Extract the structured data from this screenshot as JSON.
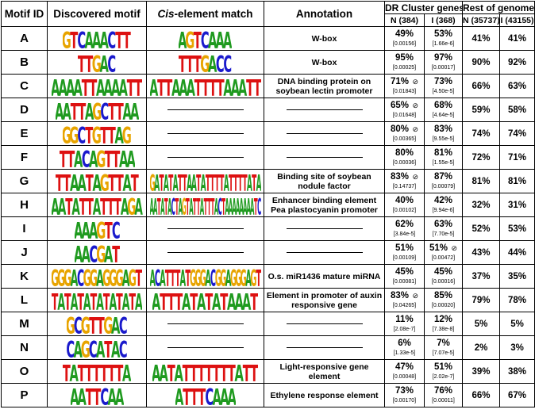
{
  "headers": {
    "motif_id": "Motif ID",
    "discovered": "Discovered motif",
    "cis_italic": "Cis",
    "cis_rest": "-element match",
    "annotation": "Annotation",
    "dr_cluster": "DR Cluster genes",
    "rest_of_genome": "Rest of genome",
    "dr_n": "N (384)",
    "dr_i": "I (368)",
    "rg_n": "N (35737)",
    "rg_i": "I (43155)"
  },
  "dash_symbol": "",
  "colors": {
    "A": "#1f9a1f",
    "C": "#1a1acc",
    "G": "#e8a400",
    "T": "#dd1111"
  },
  "rows": [
    {
      "id": "A",
      "motif": "GTCAAACTT",
      "cis": "AGTCAAA",
      "annotation": "W-box",
      "dr_n": "49%",
      "dr_n_p": "[0.00156]",
      "dr_n_mark": "",
      "dr_i": "53%",
      "dr_i_p": "[1.66e-6]",
      "dr_i_mark": "",
      "rg_n": "41%",
      "rg_i": "41%"
    },
    {
      "id": "B",
      "motif": "TTGAC",
      "cis": "TTTGACC",
      "annotation": "W-box",
      "dr_n": "95%",
      "dr_n_p": "[0.00025]",
      "dr_n_mark": "",
      "dr_i": "97%",
      "dr_i_p": "[0.00017]",
      "dr_i_mark": "",
      "rg_n": "90%",
      "rg_i": "92%"
    },
    {
      "id": "C",
      "motif": "AAAATTAAAATT",
      "cis": "ATTAAATTTTAAATT",
      "annotation": "DNA binding protein on soybean lectin promoter",
      "dr_n": "71%",
      "dr_n_p": "[0.01843]",
      "dr_n_mark": "⊘",
      "dr_i": "73%",
      "dr_i_p": "[4.50e-5]",
      "dr_i_mark": "",
      "rg_n": "66%",
      "rg_i": "63%"
    },
    {
      "id": "D",
      "motif": "AATTAGCTTAA",
      "cis": "",
      "annotation": "",
      "dr_n": "65%",
      "dr_n_p": "[0.01648]",
      "dr_n_mark": "⊘",
      "dr_i": "68%",
      "dr_i_p": "[4.64e-5]",
      "dr_i_mark": "",
      "rg_n": "59%",
      "rg_i": "58%"
    },
    {
      "id": "E",
      "motif": "GGCTGTTAG",
      "cis": "",
      "annotation": "",
      "dr_n": "80%",
      "dr_n_p": "[0.00365]",
      "dr_n_mark": "⊘",
      "dr_i": "83%",
      "dr_i_p": "[9.55e-5]",
      "dr_i_mark": "",
      "rg_n": "74%",
      "rg_i": "74%"
    },
    {
      "id": "F",
      "motif": "TTACAGTTAA",
      "cis": "",
      "annotation": "",
      "dr_n": "80%",
      "dr_n_p": "[0.00036]",
      "dr_n_mark": "",
      "dr_i": "81%",
      "dr_i_p": "[1.55e-5]",
      "dr_i_mark": "",
      "rg_n": "72%",
      "rg_i": "71%"
    },
    {
      "id": "G",
      "motif": "TTAATAGTTAT",
      "cis": "GATATATTAATATTTTATTTTATA",
      "annotation": "Binding site of soybean nodule factor",
      "dr_n": "83%",
      "dr_n_p": "[0.14737]",
      "dr_n_mark": "⊘",
      "dr_i": "87%",
      "dr_i_p": "[0.00079]",
      "dr_i_mark": "",
      "rg_n": "81%",
      "rg_i": "81%"
    },
    {
      "id": "H",
      "motif": "AATATTATTTAGA",
      "cis": "AATATACTAGTATTATTTACTAAAAAAAATC",
      "annotation": "Enhancer binding element Pea plastocyanin promoter",
      "dr_n": "40%",
      "dr_n_p": "[0.00102]",
      "dr_n_mark": "",
      "dr_i": "42%",
      "dr_i_p": "[9.94e-6]",
      "dr_i_mark": "",
      "rg_n": "32%",
      "rg_i": "31%"
    },
    {
      "id": "I",
      "motif": "AAAGTC",
      "cis": "",
      "annotation": "",
      "dr_n": "62%",
      "dr_n_p": "[3.84e-5]",
      "dr_n_mark": "",
      "dr_i": "63%",
      "dr_i_p": "[7.70e-5]",
      "dr_i_mark": "",
      "rg_n": "52%",
      "rg_i": "53%"
    },
    {
      "id": "J",
      "motif": "AACGAT",
      "cis": "",
      "annotation": "",
      "dr_n": "51%",
      "dr_n_p": "[0.00109]",
      "dr_n_mark": "",
      "dr_i": "51%",
      "dr_i_p": "[0.00472]",
      "dr_i_mark": "⊘",
      "rg_n": "43%",
      "rg_i": "44%"
    },
    {
      "id": "K",
      "motif": "GGGACGGAGGGAGT",
      "cis": "ACATTTATGGGACGGAGGGAGT",
      "annotation": "O.s. miR1436 mature miRNA",
      "dr_n": "45%",
      "dr_n_p": "[0.00081]",
      "dr_n_mark": "",
      "dr_i": "45%",
      "dr_i_p": "[0.00016]",
      "dr_i_mark": "",
      "rg_n": "37%",
      "rg_i": "35%"
    },
    {
      "id": "L",
      "motif": "TATATATATATATA",
      "cis": "ATTTATATATAAAT",
      "annotation": "Element in promoter of auxin responsive gene",
      "dr_n": "83%",
      "dr_n_p": "[0.04265]",
      "dr_n_mark": "⊘",
      "dr_i": "85%",
      "dr_i_p": "[0.00020]",
      "dr_i_mark": "",
      "rg_n": "79%",
      "rg_i": "78%"
    },
    {
      "id": "M",
      "motif": "GCGTTGAC",
      "cis": "",
      "annotation": "",
      "dr_n": "11%",
      "dr_n_p": "[2.08e-7]",
      "dr_n_mark": "",
      "dr_i": "12%",
      "dr_i_p": "[7.38e-8]",
      "dr_i_mark": "",
      "rg_n": "5%",
      "rg_i": "5%"
    },
    {
      "id": "N",
      "motif": "CAGCATAC",
      "cis": "",
      "annotation": "",
      "dr_n": "6%",
      "dr_n_p": "[1.33e-5]",
      "dr_n_mark": "",
      "dr_i": "7%",
      "dr_i_p": "[7.07e-5]",
      "dr_i_mark": "",
      "rg_n": "2%",
      "rg_i": "3%"
    },
    {
      "id": "O",
      "motif": "TATTTTTTA",
      "cis": "AATATTTTTTTATT",
      "annotation": "Light-responsive gene element",
      "dr_n": "47%",
      "dr_n_p": "[0.00048]",
      "dr_n_mark": "",
      "dr_i": "51%",
      "dr_i_p": "[2.02e-7]",
      "dr_i_mark": "",
      "rg_n": "39%",
      "rg_i": "38%"
    },
    {
      "id": "P",
      "motif": "AATTCAA",
      "cis": "ATTTCAAA",
      "annotation": "Ethylene response element",
      "dr_n": "73%",
      "dr_n_p": "[0.00170]",
      "dr_n_mark": "",
      "dr_i": "76%",
      "dr_i_p": "[0.00011]",
      "dr_i_mark": "",
      "rg_n": "66%",
      "rg_i": "67%"
    }
  ]
}
